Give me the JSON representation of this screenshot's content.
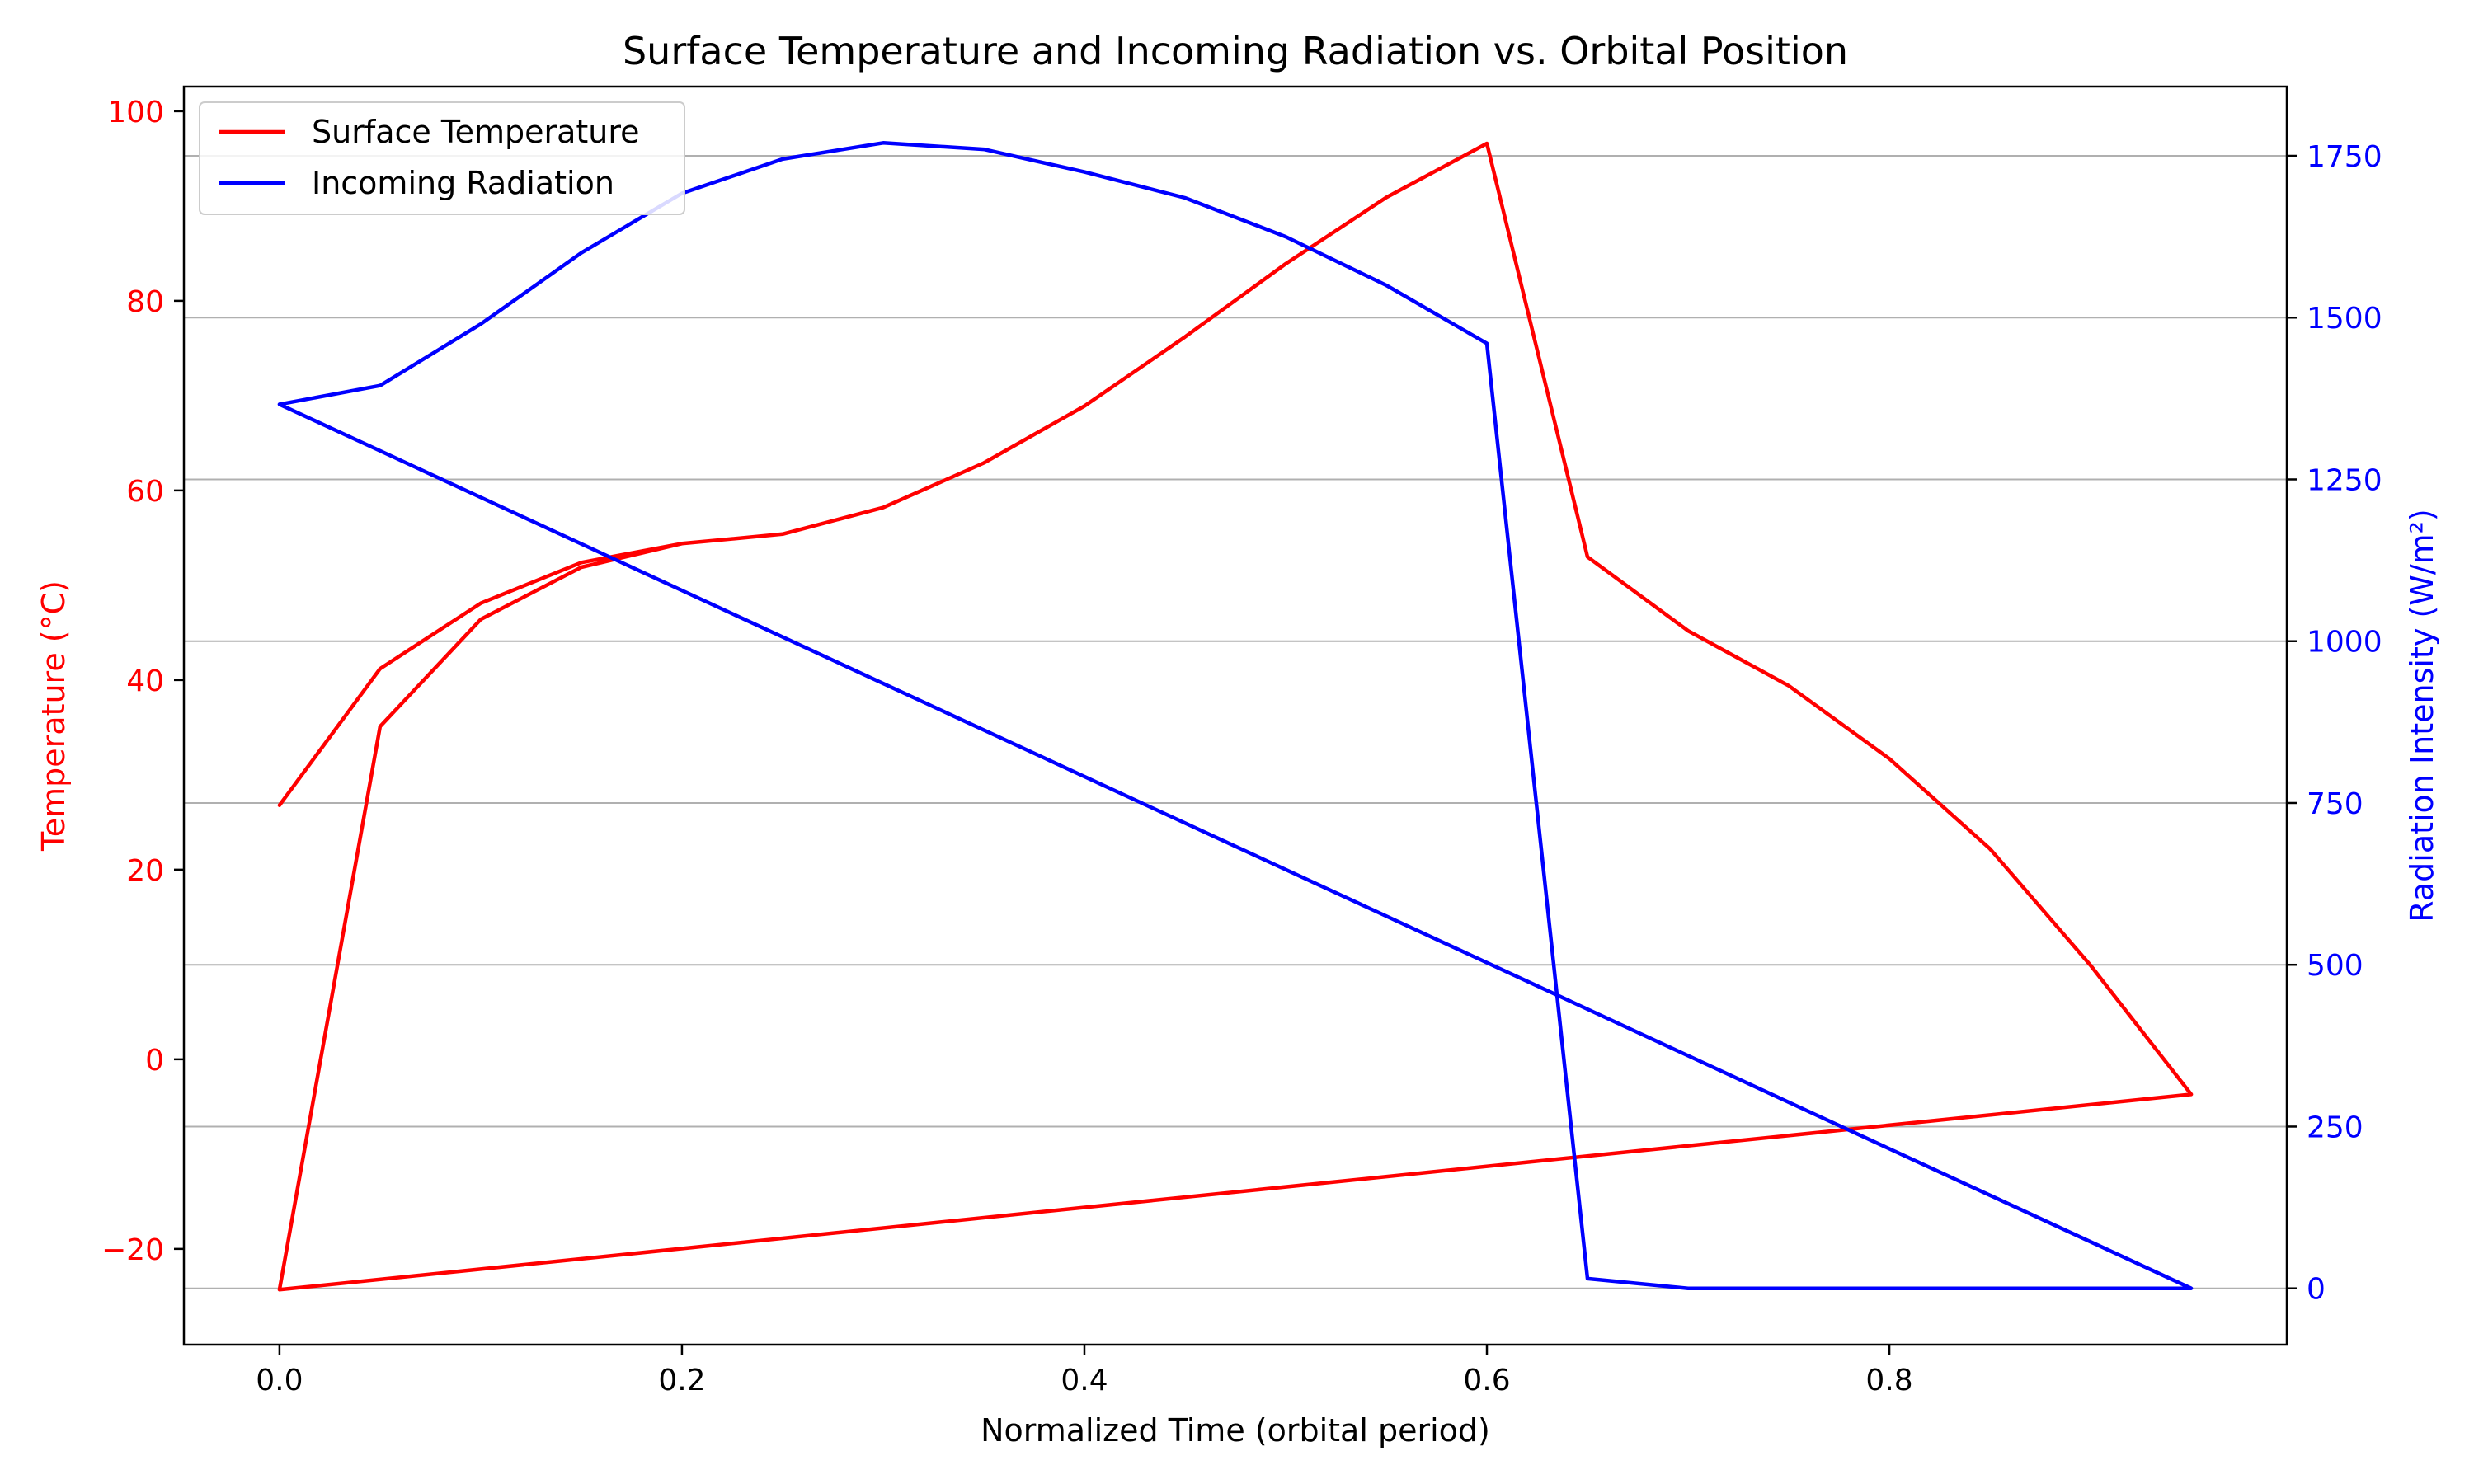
{
  "chart_data": {
    "type": "line",
    "title": "Surface Temperature and Incoming Radiation vs. Orbital Position",
    "xlabel": "Normalized Time (orbital period)",
    "y1label": "Temperature (°C)",
    "y2label": "Radiation Intensity (W/m²)",
    "xlim": [
      -0.0475,
      0.9975
    ],
    "y1lim": [
      -30.1,
      102.6
    ],
    "y2lim": [
      -87,
      1857
    ],
    "xticks": [
      0.0,
      0.2,
      0.4,
      0.6,
      0.8
    ],
    "xtick_labels": [
      "0.0",
      "0.2",
      "0.4",
      "0.6",
      "0.8"
    ],
    "y1ticks": [
      -20,
      0,
      20,
      40,
      60,
      80,
      100
    ],
    "y1tick_labels": [
      "−20",
      "0",
      "20",
      "40",
      "60",
      "80",
      "100"
    ],
    "y2ticks": [
      0,
      250,
      500,
      750,
      1000,
      1250,
      1500,
      1750
    ],
    "y2tick_labels": [
      "0",
      "250",
      "500",
      "750",
      "1000",
      "1250",
      "1500",
      "1750"
    ],
    "grid": "horizontal, right axis",
    "legend_position": "top-left",
    "colors": {
      "temperature": "#ff0000",
      "radiation": "#0000ff",
      "axis": "#000000",
      "grid": "#b0b0b0"
    },
    "series": [
      {
        "name": "Surface Temperature",
        "axis": "left",
        "color": "#ff0000",
        "x": [
          0.0,
          0.05,
          0.1,
          0.15,
          0.2,
          0.25,
          0.3,
          0.35,
          0.4,
          0.45,
          0.5,
          0.55,
          0.6,
          0.65,
          0.7,
          0.75,
          0.8,
          0.85,
          0.9,
          0.95,
          0.0,
          0.05,
          0.1,
          0.15,
          0.2
        ],
        "y": [
          26.8,
          41.2,
          48.1,
          52.4,
          54.4,
          55.4,
          58.2,
          62.9,
          68.9,
          76.2,
          83.9,
          90.9,
          96.6,
          53.0,
          45.2,
          39.4,
          31.7,
          22.2,
          9.9,
          -3.7,
          -24.3,
          35.1,
          46.4,
          51.9,
          54.4
        ]
      },
      {
        "name": "Incoming Radiation",
        "axis": "right",
        "color": "#0000ff",
        "x": [
          0.0,
          0.05,
          0.1,
          0.15,
          0.2,
          0.25,
          0.3,
          0.35,
          0.4,
          0.45,
          0.5,
          0.55,
          0.6,
          0.65,
          0.7,
          0.75,
          0.8,
          0.85,
          0.9,
          0.95,
          0.0
        ],
        "y": [
          1366,
          1395,
          1490,
          1600,
          1692,
          1745,
          1770,
          1760,
          1725,
          1685,
          1625,
          1550,
          1460,
          15,
          0,
          0,
          0,
          0,
          0,
          0,
          1366
        ]
      }
    ]
  }
}
